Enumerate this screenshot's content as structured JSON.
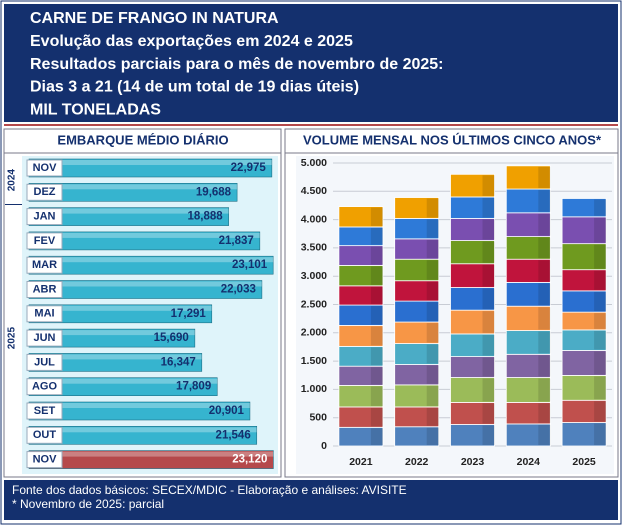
{
  "header": {
    "lines": [
      "CARNE DE FRANGO IN NATURA",
      "Evolução das exportações em 2024 e 2025",
      "Resultados parciais para o mês de novembro de 2025:",
      "Dias 3 a 21 (14 de um total de 19 dias úteis)",
      "MIL TONELADAS"
    ]
  },
  "chart_data": [
    {
      "type": "hbar",
      "title": "EMBARQUE MÉDIO DIÁRIO",
      "groups": [
        {
          "name": "2024",
          "categories": [
            "NOV",
            "DEZ"
          ],
          "values": [
            22975,
            19688
          ],
          "value_labels": [
            "22,975",
            "19,688"
          ],
          "colors": [
            "#36b4cf",
            "#36b4cf"
          ]
        },
        {
          "name": "2025",
          "categories": [
            "JAN",
            "FEV",
            "MAR",
            "ABR",
            "MAI",
            "JUN",
            "JUL",
            "AGO",
            "SET",
            "OUT",
            "NOV"
          ],
          "values": [
            18888,
            21837,
            23101,
            22033,
            17291,
            15690,
            16347,
            17809,
            20901,
            21546,
            23120
          ],
          "value_labels": [
            "18,888",
            "21,837",
            "23,101",
            "22,033",
            "17,291",
            "15,690",
            "16,347",
            "17,809",
            "20,901",
            "21,546",
            "23,120"
          ],
          "colors": [
            "#36b4cf",
            "#36b4cf",
            "#36b4cf",
            "#36b4cf",
            "#36b4cf",
            "#36b4cf",
            "#36b4cf",
            "#36b4cf",
            "#36b4cf",
            "#36b4cf",
            "#b5494b"
          ]
        }
      ]
    },
    {
      "type": "stacked_bar",
      "title": "VOLUME MENSAL NOS ÚLTIMOS CINCO ANOS*",
      "categories": [
        "2021",
        "2022",
        "2023",
        "2024",
        "2025"
      ],
      "series": [
        {
          "color": "#4f81bd",
          "values": [
            330,
            340,
            380,
            390,
            415
          ]
        },
        {
          "color": "#c0504d",
          "values": [
            360,
            350,
            390,
            380,
            393
          ]
        },
        {
          "color": "#9bbb59",
          "values": [
            380,
            390,
            440,
            440,
            439
          ]
        },
        {
          "color": "#8064a2",
          "values": [
            340,
            360,
            370,
            410,
            441
          ]
        },
        {
          "color": "#4bacc6",
          "values": [
            350,
            370,
            400,
            420,
            363
          ]
        },
        {
          "color": "#f79646",
          "values": [
            370,
            380,
            420,
            430,
            314
          ]
        },
        {
          "color": "#2a6fd0",
          "values": [
            360,
            370,
            400,
            420,
            376
          ]
        },
        {
          "color": "#c0143c",
          "values": [
            340,
            360,
            420,
            410,
            374
          ]
        },
        {
          "color": "#6f9a1f",
          "values": [
            360,
            380,
            410,
            400,
            460
          ]
        },
        {
          "color": "#7a4fb0",
          "values": [
            350,
            360,
            390,
            420,
            474
          ]
        },
        {
          "color": "#2e7ad8",
          "values": [
            330,
            360,
            380,
            420,
            324
          ]
        },
        {
          "color": "#f0a000",
          "values": [
            360,
            370,
            400,
            410,
            null
          ]
        }
      ],
      "ylim": [
        0,
        5000
      ],
      "yticks": [
        {
          "value": 0,
          "label": "0"
        },
        {
          "value": 500,
          "label": "500"
        },
        {
          "value": 1000,
          "label": "1.000"
        },
        {
          "value": 1500,
          "label": "1.500"
        },
        {
          "value": 2000,
          "label": "2.000"
        },
        {
          "value": 2500,
          "label": "2.500"
        },
        {
          "value": 3000,
          "label": "3.000"
        },
        {
          "value": 3500,
          "label": "3.500"
        },
        {
          "value": 4000,
          "label": "4.000"
        },
        {
          "value": 4500,
          "label": "4.500"
        },
        {
          "value": 5000,
          "label": "5.000"
        }
      ],
      "grid": true
    }
  ],
  "footer": {
    "lines": [
      "Fonte dos dados básicos: SECEX/MDIC - Elaboração e análises: AVISITE",
      "* Novembro de 2025: parcial"
    ]
  }
}
